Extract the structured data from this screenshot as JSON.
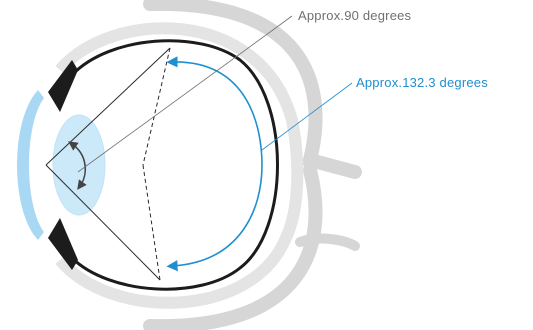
{
  "labels": {
    "lens_angle": "Approx.90 degrees",
    "retina_angle": "Approx.132.3 degrees"
  },
  "colors": {
    "orbit_bone": "#d6d6d6",
    "sclera": "#e4e4e4",
    "eye_wall": "#1c1c1c",
    "cornea": "#a9d8f4",
    "lens": "#cce9fa",
    "lens_edge": "#bfe3f7",
    "ray_lines": "#2a2a2a",
    "lens_label": "#707070",
    "retina_label": "#1f8fd0",
    "arrows": "#444444"
  }
}
